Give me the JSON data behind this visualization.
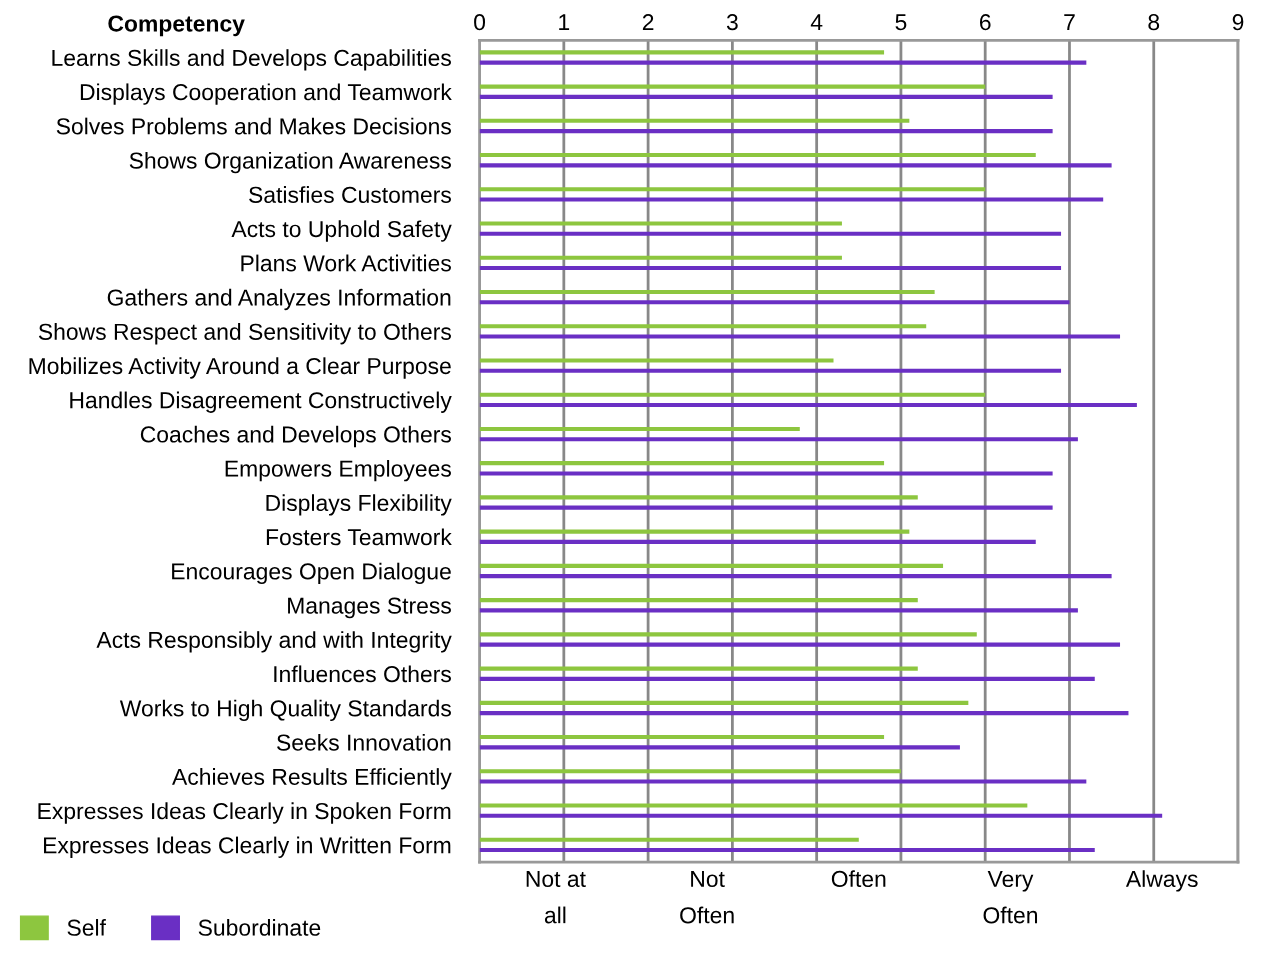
{
  "chart_data": {
    "type": "bar",
    "orientation": "horizontal",
    "ylabel": "Competency",
    "categories": [
      "Learns Skills and Develops Capabilities",
      "Displays Cooperation and Teamwork",
      "Solves Problems and Makes Decisions",
      "Shows Organization Awareness",
      "Satisfies Customers",
      "Acts to Uphold Safety",
      "Plans Work Activities",
      "Gathers and Analyzes Information",
      "Shows Respect and Sensitivity to Others",
      "Mobilizes Activity Around a Clear Purpose",
      "Handles Disagreement Constructively",
      "Coaches and Develops Others",
      "Empowers Employees",
      "Displays Flexibility",
      "Fosters Teamwork",
      "Encourages Open Dialogue",
      "Manages Stress",
      "Acts Responsibly and with Integrity",
      "Influences Others",
      "Works to High Quality Standards",
      "Seeks Innovation",
      "Achieves Results Efficiently",
      "Expresses Ideas Clearly in Spoken Form",
      "Expresses Ideas Clearly in Written Form"
    ],
    "series": [
      {
        "name": "Self",
        "color": "#8dc63f",
        "values": [
          4.8,
          6.0,
          5.1,
          6.6,
          6.0,
          4.3,
          4.3,
          5.4,
          5.3,
          4.2,
          6.0,
          3.8,
          4.8,
          5.2,
          5.1,
          5.5,
          5.2,
          5.9,
          5.2,
          5.8,
          4.8,
          5.0,
          6.5,
          4.5
        ]
      },
      {
        "name": "Subordinate",
        "color": "#6a2fc4",
        "values": [
          7.2,
          6.8,
          6.8,
          7.5,
          7.4,
          6.9,
          6.9,
          7.0,
          7.6,
          6.9,
          7.8,
          7.1,
          6.8,
          6.8,
          6.6,
          7.5,
          7.1,
          7.6,
          7.3,
          7.7,
          5.7,
          7.2,
          8.1,
          7.3
        ]
      }
    ],
    "xlim": [
      0,
      9
    ],
    "annotations": [
      "Not at\nall",
      "Not\nOften",
      "Often",
      "Very\nOften",
      "Always"
    ],
    "xticks": [
      0,
      1,
      2,
      3,
      4,
      5,
      6,
      7,
      8,
      9
    ],
    "grid": "x",
    "legend": "bottom left"
  }
}
